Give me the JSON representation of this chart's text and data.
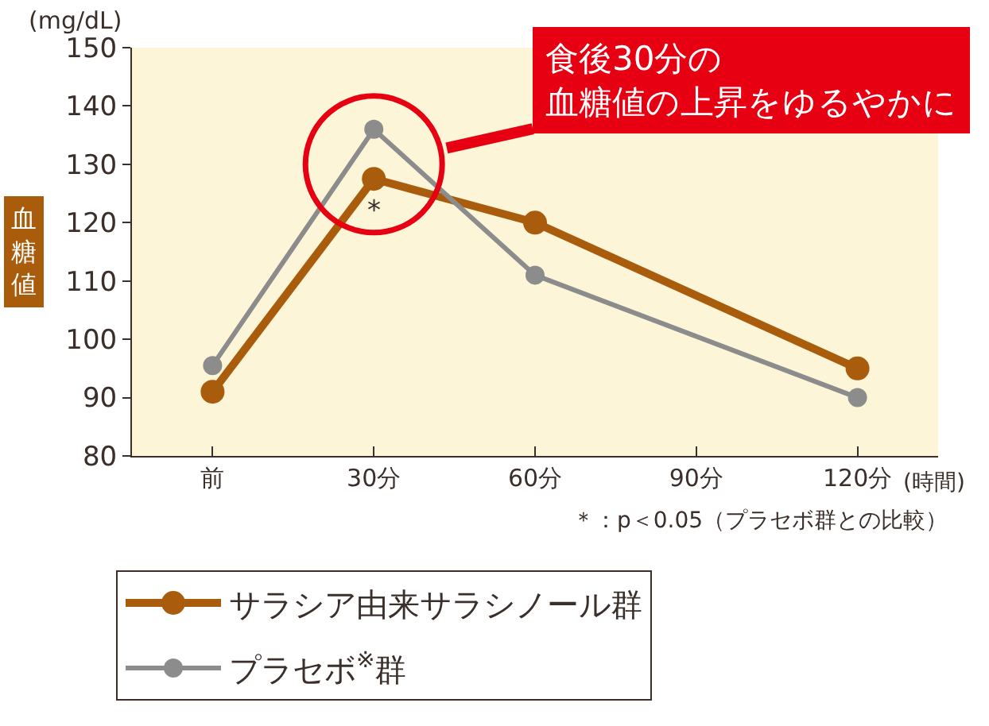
{
  "chart_data": {
    "type": "line",
    "x": [
      0,
      30,
      60,
      120
    ],
    "series": [
      {
        "name": "サラシア由来サラシノール群",
        "color": "#a85c0c",
        "values": [
          91,
          127.5,
          120,
          95
        ]
      },
      {
        "name": "プラセボ$^{※}$群",
        "color": "#8c8c8c",
        "values": [
          95.5,
          136,
          111,
          90
        ]
      }
    ],
    "xlim": [
      -15,
      135
    ],
    "xticks": [
      {
        "value": 0,
        "label": "前"
      },
      {
        "value": 30,
        "label": "30分"
      },
      {
        "value": 60,
        "label": "60分"
      },
      {
        "value": 90,
        "label": "90分"
      },
      {
        "value": 120,
        "label": "120分"
      }
    ],
    "xlabel": "(時間)",
    "ylim": [
      80,
      150
    ],
    "yticks": [
      80,
      90,
      100,
      110,
      120,
      130,
      140,
      150
    ],
    "ylabel": "血糖値",
    "annotations": [
      "(mg/dL)",
      {
        "text": "*",
        "x": 30,
        "y": 127.5
      },
      {
        "text": "食後30分の血糖値の上昇をゆるやかに",
        "x": 30,
        "y": 130
      },
      "＊：p＜0.05（プラセボ群との比較）"
    ],
    "legend": "bottom",
    "grid": false,
    "marker": "circle",
    "line_style": "solid"
  }
}
